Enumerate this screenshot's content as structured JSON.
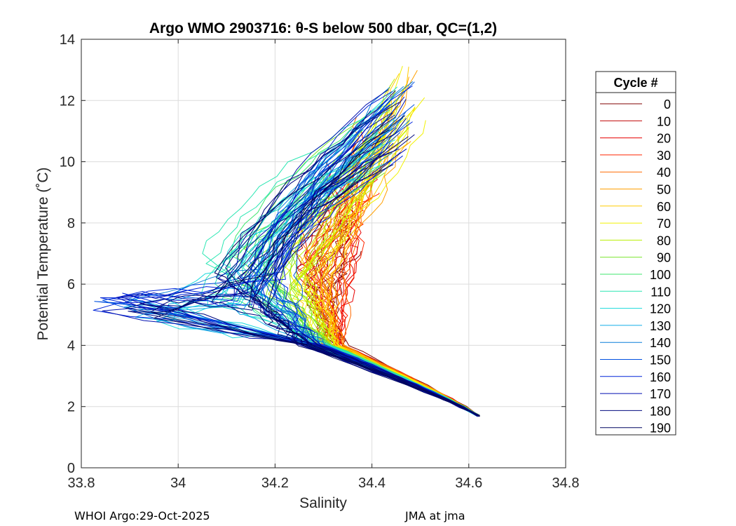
{
  "footer": {
    "source": "WHOI Argo:29-Oct-2025",
    "operator": "JMA at jma"
  },
  "chart_data": {
    "type": "line",
    "title": "Argo WMO 2903716: θ-S below 500 dbar,  QC=(1,2)",
    "xlabel": "Salinity",
    "ylabel": "Potential Temperature (˚C)",
    "xlim": [
      33.8,
      34.8
    ],
    "ylim": [
      0,
      14
    ],
    "xticks": [
      33.8,
      34,
      34.2,
      34.4,
      34.6,
      34.8
    ],
    "xtick_labels": [
      "33.8",
      "34",
      "34.2",
      "34.4",
      "34.6",
      "34.8"
    ],
    "yticks": [
      0,
      2,
      4,
      6,
      8,
      10,
      12,
      14
    ],
    "ytick_labels": [
      "0",
      "2",
      "4",
      "6",
      "8",
      "10",
      "12",
      "14"
    ],
    "grid": true,
    "legend": {
      "title": "Cycle #",
      "placement": "right",
      "entries": [
        "0",
        "10",
        "20",
        "30",
        "40",
        "50",
        "60",
        "70",
        "80",
        "90",
        "100",
        "110",
        "120",
        "130",
        "140",
        "150",
        "160",
        "170",
        "180",
        "190"
      ],
      "colors": [
        "#800000",
        "#bf0000",
        "#e60000",
        "#ff2600",
        "#ff6a00",
        "#ff9f00",
        "#ffcc00",
        "#f2f200",
        "#b8f000",
        "#78e62a",
        "#3fe66e",
        "#2ae6b2",
        "#1ad9dc",
        "#12aee6",
        "#0a7fd9",
        "#0050e0",
        "#0024d9",
        "#000fb0",
        "#00087f",
        "#000660"
      ]
    },
    "series_stats": {
      "cycles": [
        0,
        10,
        20,
        30,
        40,
        50,
        60,
        70,
        80,
        90,
        100,
        110,
        120,
        130,
        140,
        150,
        160,
        170,
        180,
        190
      ],
      "deep_end": [
        34.62,
        1.7
      ],
      "knee_salinity": [
        34.29,
        34.3,
        34.31,
        34.32,
        34.3,
        34.27,
        34.26,
        34.24,
        34.22,
        34.18,
        34.13,
        34.1,
        34.09,
        34.12,
        34.16,
        34.18,
        34.17,
        34.15,
        34.14,
        34.14
      ],
      "knee_temperature": [
        6.0,
        6.5,
        7.0,
        7.5,
        7.2,
        6.8,
        6.4,
        6.2,
        6.2,
        6.5,
        6.5,
        6.3,
        6.0,
        5.8,
        6.0,
        6.2,
        6.2,
        6.0,
        6.0,
        6.0
      ],
      "top_salinity": [
        34.34,
        34.35,
        34.36,
        34.38,
        34.4,
        34.45,
        34.47,
        34.48,
        34.46,
        34.4,
        34.35,
        34.38,
        34.42,
        34.44,
        34.46,
        34.47,
        34.46,
        34.45,
        34.44,
        34.44
      ],
      "top_temperature": [
        9.5,
        10.0,
        10.5,
        11.0,
        12.0,
        13.0,
        13.4,
        13.6,
        13.4,
        12.0,
        11.5,
        12.0,
        12.5,
        12.7,
        12.8,
        12.9,
        12.6,
        12.4,
        12.2,
        12.2
      ],
      "fresh_low_salinity": [
        34.3,
        34.28,
        34.25,
        34.2,
        34.15,
        34.1,
        34.08,
        34.06,
        34.04,
        34.02,
        34.0,
        33.98,
        33.95,
        33.92,
        33.88,
        33.86,
        33.85,
        33.86,
        33.9,
        33.95
      ],
      "fresh_low_temperature": [
        4.0,
        4.0,
        4.1,
        4.2,
        4.3,
        4.4,
        4.5,
        4.6,
        4.7,
        4.8,
        4.9,
        5.0,
        5.1,
        5.2,
        5.3,
        5.4,
        5.4,
        5.3,
        5.2,
        5.0
      ]
    }
  }
}
